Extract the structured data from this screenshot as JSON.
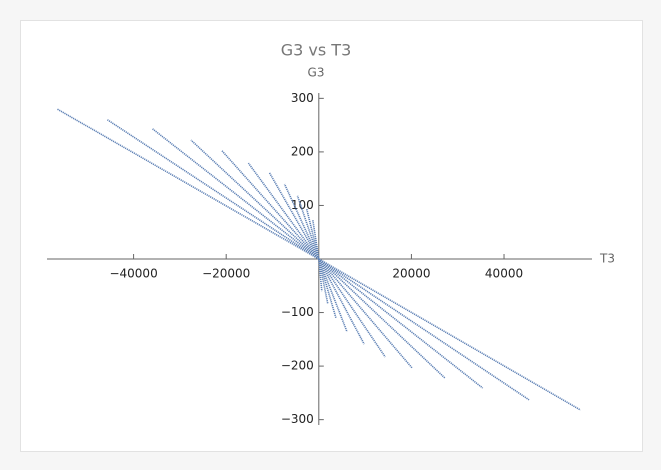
{
  "chart_data": {
    "type": "line",
    "title": "G3 vs T3",
    "x_label": "T3",
    "y_label": "G3",
    "xlim": [
      -58700,
      59000
    ],
    "ylim": [
      -310,
      310
    ],
    "xticks": [
      {
        "value": -40000,
        "label": "−40000"
      },
      {
        "value": -20000,
        "label": "−20000"
      },
      20000,
      40000
    ],
    "yticks": [
      {
        "value": -300,
        "label": "−300"
      },
      {
        "value": -200,
        "label": "−200"
      },
      {
        "value": -100,
        "label": "−100"
      },
      100,
      200,
      300
    ],
    "series": [
      {
        "color": "#5e81b5",
        "x": [
          0,
          -56500
        ],
        "values": [
          0,
          280
        ]
      },
      {
        "color": "#5e81b5",
        "x": [
          0,
          -45650
        ],
        "values": [
          0,
          260
        ]
      },
      {
        "color": "#5e81b5",
        "x": [
          0,
          -35900
        ],
        "values": [
          0,
          243
        ]
      },
      {
        "color": "#5e81b5",
        "x": [
          0,
          -27600
        ],
        "values": [
          0,
          222
        ]
      },
      {
        "color": "#5e81b5",
        "x": [
          0,
          -20900
        ],
        "values": [
          0,
          202
        ]
      },
      {
        "color": "#5e81b5",
        "x": [
          0,
          -15200
        ],
        "values": [
          0,
          179
        ]
      },
      {
        "color": "#5e81b5",
        "x": [
          0,
          -10650
        ],
        "values": [
          0,
          161
        ]
      },
      {
        "color": "#5e81b5",
        "x": [
          0,
          -7400
        ],
        "values": [
          0,
          140
        ]
      },
      {
        "color": "#5e81b5",
        "x": [
          0,
          -4600
        ],
        "values": [
          0,
          118
        ]
      },
      {
        "color": "#5e81b5",
        "x": [
          0,
          -2600
        ],
        "values": [
          0,
          93
        ]
      },
      {
        "color": "#5e81b5",
        "x": [
          0,
          -1300
        ],
        "values": [
          0,
          73
        ]
      },
      {
        "color": "#5e81b5",
        "x": [
          0,
          56500
        ],
        "values": [
          0,
          -282
        ]
      },
      {
        "color": "#5e81b5",
        "x": [
          0,
          45400
        ],
        "values": [
          0,
          -263
        ]
      },
      {
        "color": "#5e81b5",
        "x": [
          0,
          35400
        ],
        "values": [
          0,
          -241
        ]
      },
      {
        "color": "#5e81b5",
        "x": [
          0,
          27200
        ],
        "values": [
          0,
          -222
        ]
      },
      {
        "color": "#5e81b5",
        "x": [
          0,
          20200
        ],
        "values": [
          0,
          -204
        ]
      },
      {
        "color": "#5e81b5",
        "x": [
          0,
          14350
        ],
        "values": [
          0,
          -183
        ]
      },
      {
        "color": "#5e81b5",
        "x": [
          0,
          9800
        ],
        "values": [
          0,
          -159
        ]
      },
      {
        "color": "#5e81b5",
        "x": [
          0,
          6100
        ],
        "values": [
          0,
          -136
        ]
      },
      {
        "color": "#5e81b5",
        "x": [
          0,
          3700
        ],
        "values": [
          0,
          -110
        ]
      },
      {
        "color": "#5e81b5",
        "x": [
          0,
          1950
        ],
        "values": [
          0,
          -84
        ]
      },
      {
        "color": "#5e81b5",
        "x": [
          0,
          650
        ],
        "values": [
          0,
          -60
        ]
      }
    ]
  }
}
